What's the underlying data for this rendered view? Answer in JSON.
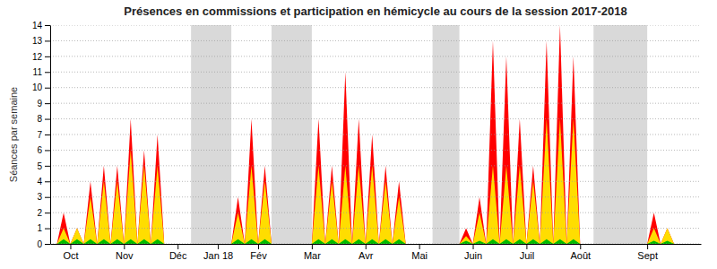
{
  "chart_data": {
    "type": "area",
    "title": "Présences en commissions et participation en hémicycle au cours de la session 2017-2018",
    "y_label": "Séances par semaine",
    "x": [
      0,
      1,
      2,
      3,
      4,
      5,
      6,
      7,
      8,
      9,
      10,
      11,
      12,
      13,
      14,
      15,
      16,
      17,
      18,
      19,
      20,
      26,
      27,
      28,
      29,
      30,
      31,
      32,
      38,
      39,
      40,
      41,
      42,
      43,
      44,
      45,
      46,
      47,
      48,
      49,
      50,
      51,
      52,
      53,
      54,
      55,
      56,
      60,
      61,
      62,
      63,
      64,
      65,
      66,
      67,
      68,
      69,
      70,
      71,
      72,
      73,
      74,
      75,
      76,
      77,
      78,
      79,
      80,
      88,
      89,
      90,
      91,
      92,
      93,
      94,
      95
    ],
    "series": [
      {
        "color": "#ff0000",
        "values": [
          0,
          2,
          0,
          1,
          0,
          4,
          0,
          5,
          0,
          5,
          0,
          8,
          0,
          6,
          0,
          7,
          0,
          0,
          0,
          0,
          0,
          0,
          3,
          0,
          8,
          0,
          5,
          0,
          0,
          8,
          0,
          5,
          0,
          11,
          0,
          8,
          0,
          7,
          0,
          5,
          0,
          4,
          0,
          0,
          0,
          0,
          0,
          0,
          1,
          0,
          3,
          0,
          13,
          0,
          12,
          0,
          8,
          0,
          5,
          0,
          13,
          0,
          14,
          0,
          12,
          0,
          0,
          0,
          0,
          2,
          0,
          1,
          0,
          0,
          0,
          0
        ]
      },
      {
        "color": "#ffdd00",
        "values": [
          0,
          1,
          0,
          1,
          0,
          3,
          0,
          4,
          0,
          4,
          0,
          6,
          0,
          5,
          0,
          5,
          0,
          0,
          0,
          0,
          0,
          0,
          2,
          0,
          5,
          0,
          4,
          0,
          0,
          5,
          0,
          4,
          0,
          5,
          0,
          5,
          0,
          5,
          0,
          4,
          0,
          3,
          0,
          0,
          0,
          0,
          0,
          0,
          0.5,
          0,
          2,
          0,
          5,
          0,
          5,
          0,
          5,
          0,
          4,
          0,
          8,
          0,
          8,
          0,
          8,
          0,
          0,
          0,
          0,
          1,
          0,
          1,
          0,
          0,
          0,
          0
        ]
      },
      {
        "color": "#00bb00",
        "values": [
          0,
          0.3,
          0,
          0.3,
          0,
          0.3,
          0,
          0.3,
          0,
          0.3,
          0,
          0.3,
          0,
          0.3,
          0,
          0.3,
          0,
          0,
          0,
          0,
          0,
          0,
          0.3,
          0,
          0.3,
          0,
          0.3,
          0,
          0,
          0.3,
          0,
          0.3,
          0,
          0.3,
          0,
          0.3,
          0,
          0.3,
          0,
          0.3,
          0,
          0.3,
          0,
          0,
          0,
          0,
          0,
          0,
          0.2,
          0,
          0.2,
          0,
          0.3,
          0,
          0.3,
          0,
          0.3,
          0,
          0.3,
          0,
          0.3,
          0,
          0.3,
          0,
          0.3,
          0,
          0,
          0,
          0,
          0.2,
          0,
          0.2,
          0,
          0,
          0,
          0
        ]
      }
    ],
    "shade_bands": [
      {
        "xmin": 20,
        "xmax": 26,
        "color": "#aaaaaa"
      },
      {
        "xmin": 32,
        "xmax": 38,
        "color": "#aaaaaa"
      },
      {
        "xmin": 56,
        "xmax": 60,
        "color": "#aaaaaa"
      },
      {
        "xmin": 80,
        "xmax": 88,
        "color": "#aaaaaa"
      }
    ],
    "xlim": [
      -1,
      96
    ],
    "xticks": [
      {
        "value": 2,
        "label": "Oct"
      },
      {
        "value": 10,
        "label": "Nov"
      },
      {
        "value": 18,
        "label": "Déc"
      },
      {
        "value": 24,
        "label": "Jan 18"
      },
      {
        "value": 30,
        "label": "Fév"
      },
      {
        "value": 38,
        "label": "Mar"
      },
      {
        "value": 46,
        "label": "Avr"
      },
      {
        "value": 54,
        "label": "Mai"
      },
      {
        "value": 62,
        "label": "Juin"
      },
      {
        "value": 70,
        "label": "Juil"
      },
      {
        "value": 78,
        "label": "Août"
      },
      {
        "value": 88,
        "label": "Sept"
      }
    ],
    "ylim": [
      0,
      14
    ],
    "yticks": [
      0,
      1,
      2,
      3,
      4,
      5,
      6,
      7,
      8,
      9,
      10,
      11,
      12,
      13,
      14
    ],
    "grid": true
  }
}
